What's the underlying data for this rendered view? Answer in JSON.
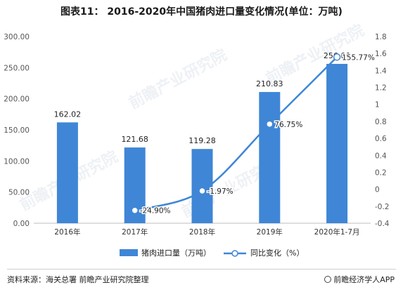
{
  "title": "图表11：  2016-2020年中国猪肉进口量变化情况(单位：万吨)",
  "footer": {
    "source": "资料来源：海关总署  前瞻产业研究院整理",
    "brand": "前瞻经济学人APP"
  },
  "watermark": "前瞻产业研究院",
  "colors": {
    "bar": "#3f86d6",
    "line": "#3f86d6",
    "axis_text": "#555555",
    "grid": "#e3e3e3"
  },
  "chart_data": {
    "type": "bar",
    "title": "2016-2020年中国猪肉进口量变化情况(单位：万吨)",
    "categories": [
      "2016年",
      "2017年",
      "2018年",
      "2019年",
      "2020年1-7月"
    ],
    "series": [
      {
        "name": "猪肉进口量（万吨）",
        "type": "bar",
        "axis": "left",
        "values": [
          162.02,
          121.68,
          119.28,
          210.83,
          256.0
        ],
        "labels": [
          "162.02",
          "121.68",
          "119.28",
          "210.83",
          "256.00"
        ]
      },
      {
        "name": "同比变化（%）",
        "type": "line",
        "axis": "right",
        "values": [
          null,
          -24.9,
          -1.97,
          76.75,
          155.77
        ],
        "labels": [
          "",
          "-24.90%",
          "-1.97%",
          "76.75%",
          "155.77%"
        ]
      }
    ],
    "y_left": {
      "min": 0,
      "max": 300,
      "ticks": [
        "0.00",
        "50.00",
        "100.00",
        "150.00",
        "200.00",
        "250.00",
        "300.00"
      ]
    },
    "y_right": {
      "min": -0.4,
      "max": 1.8,
      "ticks": [
        "-0.4",
        "-0.2",
        "0",
        "0.2",
        "0.4",
        "0.6",
        "0.8",
        "1",
        "1.2",
        "1.4",
        "1.6",
        "1.8"
      ]
    },
    "legend_position": "bottom",
    "grid": true
  }
}
